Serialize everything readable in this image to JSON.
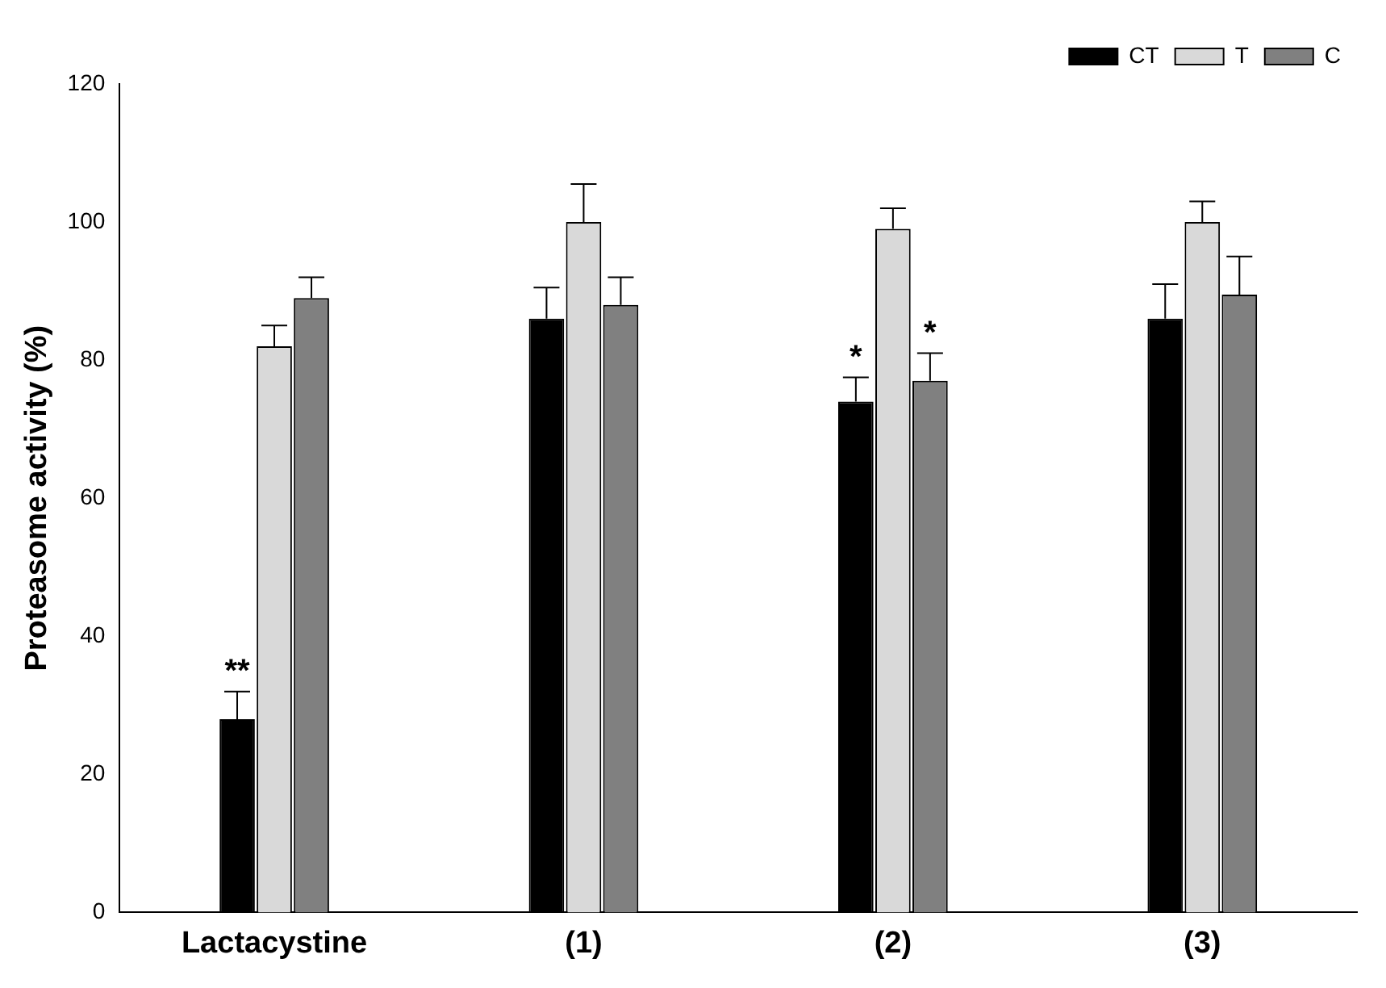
{
  "chart_data": {
    "type": "bar",
    "ylabel": "Proteasome activity (%)",
    "categories": [
      "Lactacystine",
      "(1)",
      "(2)",
      "(3)"
    ],
    "series": [
      {
        "name": "CT",
        "color": "#000000",
        "values": [
          28,
          86,
          74,
          86
        ],
        "errors": [
          [
            28,
            32
          ],
          [
            86,
            90.5
          ],
          [
            74,
            77.5
          ],
          [
            86,
            91
          ]
        ]
      },
      {
        "name": "T",
        "color": "#d9d9d9",
        "values": [
          82,
          100,
          99,
          100
        ],
        "errors": [
          [
            82,
            85
          ],
          [
            100,
            105.5
          ],
          [
            99,
            102
          ],
          [
            100,
            103
          ]
        ]
      },
      {
        "name": "C",
        "color": "#808080",
        "values": [
          89,
          88,
          77,
          89.5
        ],
        "errors": [
          [
            89,
            92
          ],
          [
            88,
            92
          ],
          [
            77,
            81
          ],
          [
            89.5,
            95
          ]
        ]
      }
    ],
    "ylim": [
      0,
      120
    ],
    "yticks": [
      0,
      20,
      40,
      60,
      80,
      100,
      120
    ],
    "grid": false,
    "legend": "top right",
    "annotations": [
      "**",
      "*",
      "*"
    ]
  }
}
